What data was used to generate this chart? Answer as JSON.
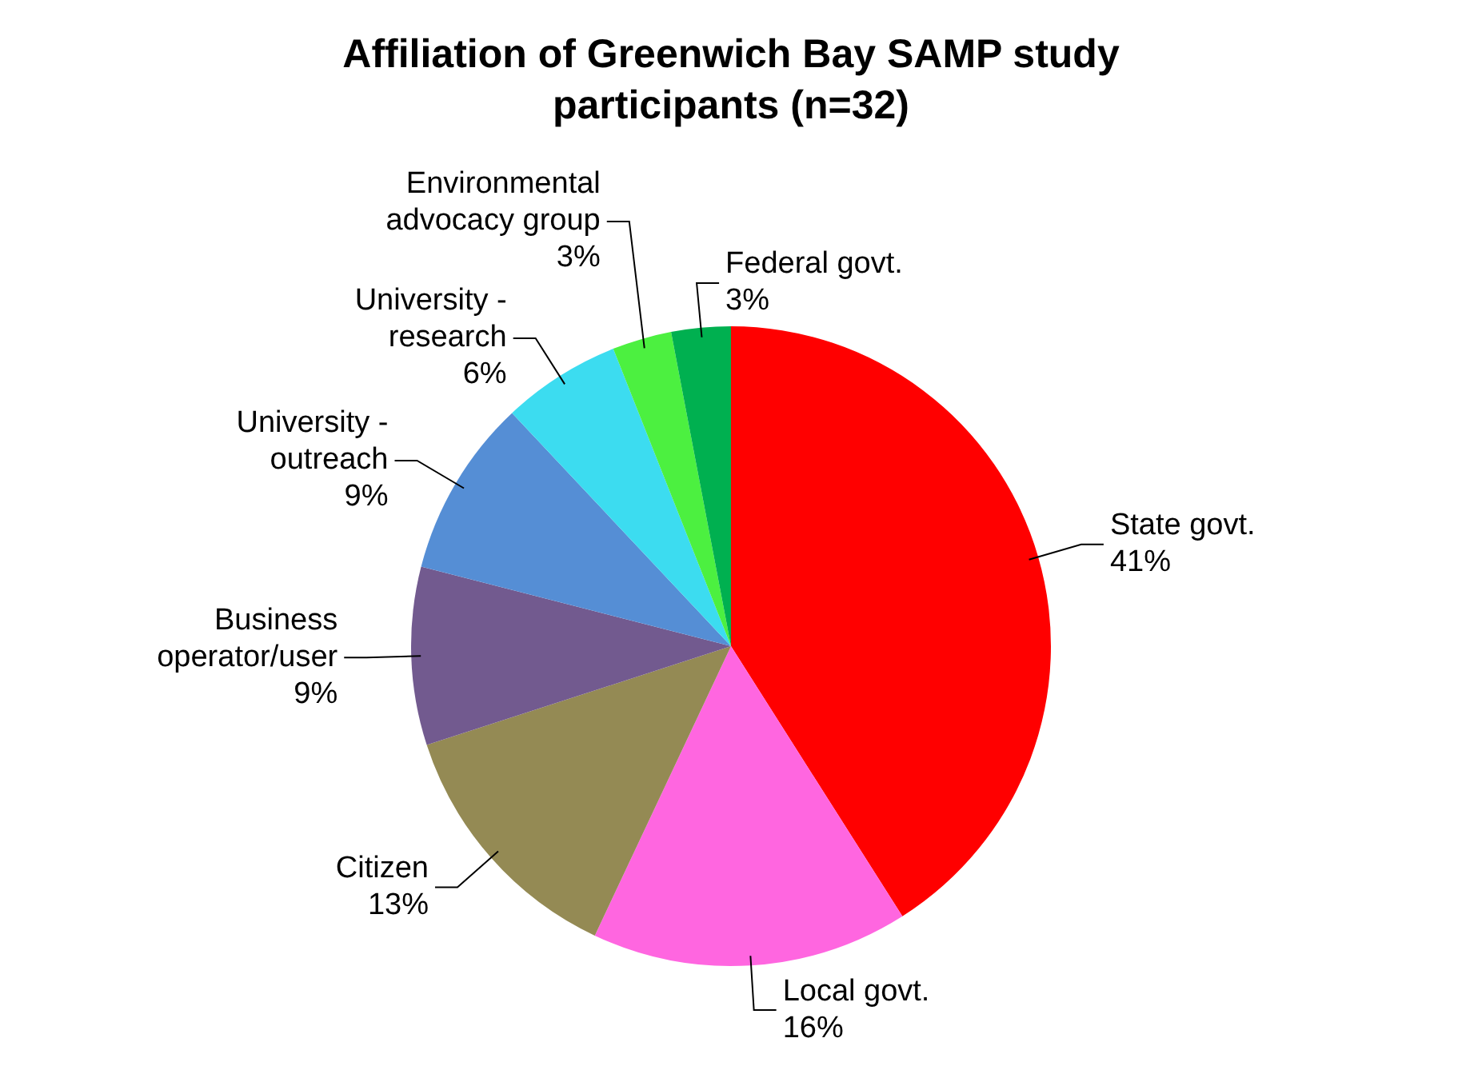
{
  "chart_data": {
    "type": "pie",
    "title": "Affiliation of Greenwich Bay SAMP study participants (n=32)",
    "categories": [
      "State govt.",
      "Local govt.",
      "Citizen",
      "Business operator/user",
      "University - outreach",
      "University - research",
      "Environmental advocacy group",
      "Federal govt."
    ],
    "values": [
      41,
      16,
      13,
      9,
      9,
      6,
      3,
      3
    ],
    "value_labels": [
      "41%",
      "16%",
      "13%",
      "9%",
      "9%",
      "6%",
      "3%",
      "3%"
    ],
    "colors": [
      "#ff0000",
      "#ff66e0",
      "#948a54",
      "#725a8f",
      "#558ed5",
      "#3cdcf0",
      "#4cf040",
      "#00b050"
    ],
    "legend": false
  }
}
